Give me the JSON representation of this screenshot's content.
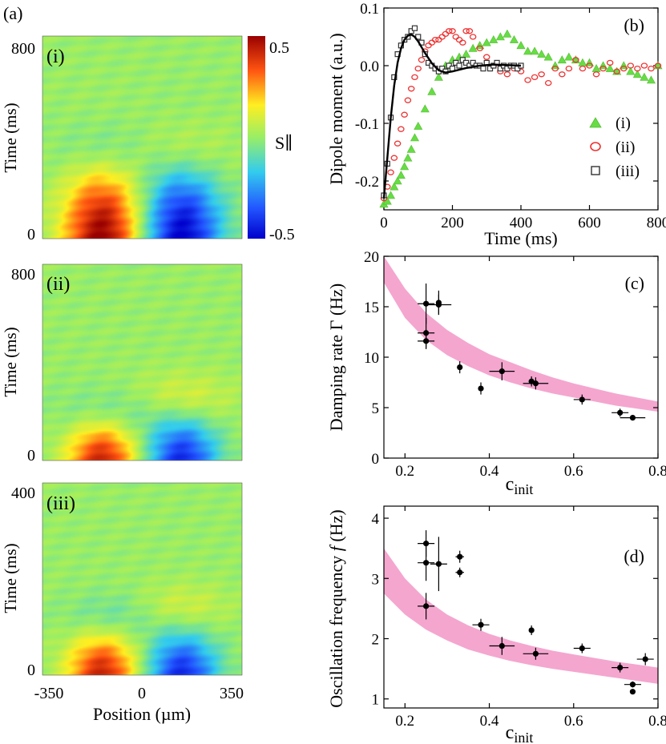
{
  "chart_data": [
    {
      "panel": "(a)",
      "type": "heatmap",
      "xlabel": "Position (µm)",
      "xticks": [
        "-350",
        "0",
        "350"
      ],
      "xlim": [
        -350,
        350
      ],
      "colorbar": {
        "label": "S∥",
        "max_label": "0.5",
        "min_label": "-0.5",
        "range": [
          -0.5,
          0.5
        ]
      },
      "subpanels": [
        {
          "label": "(i)",
          "ylabel": "Time (ms)",
          "ylim": [
            0,
            800
          ],
          "yticks": [
            "0",
            "800"
          ],
          "blobs": [
            {
              "x": -140,
              "t": 0,
              "amp": 0.5,
              "sx": 95,
              "st": 200
            },
            {
              "x": 140,
              "t": 0,
              "amp": -0.5,
              "sx": 95,
              "st": 200
            },
            {
              "x": -130,
              "t": 340,
              "amp": -0.12,
              "sx": 110,
              "st": 90
            },
            {
              "x": 140,
              "t": 340,
              "amp": 0.12,
              "sx": 110,
              "st": 90
            }
          ]
        },
        {
          "label": "(ii)",
          "ylabel": "Time (ms)",
          "ylim": [
            0,
            800
          ],
          "yticks": [
            "0",
            "800"
          ],
          "blobs": [
            {
              "x": -140,
              "t": 0,
              "amp": 0.42,
              "sx": 85,
              "st": 120
            },
            {
              "x": 140,
              "t": 0,
              "amp": -0.42,
              "sx": 85,
              "st": 120
            },
            {
              "x": -110,
              "t": 190,
              "amp": -0.12,
              "sx": 120,
              "st": 75
            },
            {
              "x": 140,
              "t": 250,
              "amp": 0.12,
              "sx": 120,
              "st": 75
            }
          ]
        },
        {
          "label": "(iii)",
          "ylabel": "Time (ms)",
          "ylim": [
            0,
            400
          ],
          "yticks": [
            "0",
            "400"
          ],
          "blobs": [
            {
              "x": -140,
              "t": 0,
              "amp": 0.42,
              "sx": 85,
              "st": 60
            },
            {
              "x": 140,
              "t": 0,
              "amp": -0.42,
              "sx": 85,
              "st": 60
            },
            {
              "x": -110,
              "t": 120,
              "amp": -0.1,
              "sx": 110,
              "st": 35
            },
            {
              "x": 140,
              "t": 140,
              "amp": 0.1,
              "sx": 110,
              "st": 35
            }
          ]
        }
      ]
    },
    {
      "panel": "(b)",
      "type": "scatter",
      "xlabel": "Time (ms)",
      "ylabel": "Dipole moment (a.u.)",
      "xlim": [
        0,
        800
      ],
      "ylim": [
        -0.25,
        0.1
      ],
      "xticks": [
        "0",
        "200",
        "400",
        "600",
        "800"
      ],
      "yticks": [
        "-0.2",
        "-0.1",
        "0.0",
        "0.1"
      ],
      "series": [
        {
          "name": "(i)",
          "marker": "triangle",
          "color": "#66dd44",
          "x": [
            0,
            10,
            20,
            30,
            40,
            50,
            60,
            70,
            80,
            90,
            100,
            120,
            140,
            160,
            180,
            200,
            220,
            240,
            260,
            280,
            300,
            320,
            340,
            360,
            380,
            400,
            420,
            440,
            460,
            480,
            500,
            520,
            540,
            560,
            580,
            600,
            620,
            640,
            660,
            680,
            700,
            720,
            740,
            760,
            780,
            800
          ],
          "y": [
            -0.24,
            -0.235,
            -0.225,
            -0.21,
            -0.2,
            -0.19,
            -0.175,
            -0.16,
            -0.145,
            -0.125,
            -0.105,
            -0.075,
            -0.045,
            -0.02,
            0.0,
            0.01,
            0.015,
            0.02,
            0.03,
            0.035,
            0.04,
            0.045,
            0.05,
            0.055,
            0.045,
            0.035,
            0.025,
            0.025,
            0.02,
            0.015,
            0.0,
            0.01,
            0.015,
            0.01,
            0.005,
            0.005,
            -0.005,
            0.0,
            -0.005,
            -0.01,
            0.0,
            -0.01,
            -0.015,
            -0.02,
            -0.025,
            0.0
          ]
        },
        {
          "name": "(ii)",
          "marker": "circle",
          "color": "#ee3333",
          "x": [
            0,
            10,
            20,
            30,
            40,
            50,
            60,
            70,
            80,
            90,
            100,
            110,
            120,
            130,
            140,
            150,
            160,
            170,
            180,
            190,
            200,
            210,
            220,
            230,
            240,
            250,
            260,
            280,
            300,
            320,
            340,
            360,
            380,
            400,
            420,
            440,
            460,
            480,
            500,
            520,
            540,
            560,
            580,
            600,
            620,
            640,
            660,
            680,
            700,
            720,
            740,
            760,
            780,
            800
          ],
          "y": [
            -0.23,
            -0.21,
            -0.185,
            -0.16,
            -0.135,
            -0.11,
            -0.085,
            -0.06,
            -0.04,
            -0.02,
            -0.005,
            0.01,
            0.025,
            0.035,
            0.04,
            0.045,
            0.045,
            0.05,
            0.055,
            0.06,
            0.06,
            0.05,
            0.045,
            0.04,
            0.06,
            0.06,
            0.05,
            0.03,
            0.015,
            0.0,
            -0.01,
            -0.015,
            -0.005,
            -0.01,
            -0.025,
            -0.02,
            -0.015,
            -0.03,
            -0.005,
            -0.015,
            -0.005,
            0.01,
            -0.005,
            0.0,
            -0.015,
            -0.005,
            0.005,
            -0.01,
            -0.005,
            0.0,
            -0.005,
            0.0,
            -0.005,
            0.0
          ]
        },
        {
          "name": "(iii)",
          "marker": "square",
          "color": "#333333",
          "x": [
            0,
            10,
            20,
            30,
            40,
            50,
            60,
            70,
            80,
            90,
            100,
            110,
            120,
            130,
            140,
            150,
            160,
            170,
            180,
            190,
            200,
            210,
            220,
            230,
            240,
            250,
            260,
            270,
            280,
            290,
            300,
            310,
            320,
            330,
            340,
            350,
            360,
            370,
            380,
            390,
            400
          ],
          "y": [
            -0.225,
            -0.17,
            -0.09,
            -0.02,
            0.02,
            0.035,
            0.045,
            0.05,
            0.06,
            0.065,
            0.05,
            0.04,
            0.02,
            0.005,
            0.0,
            -0.005,
            -0.01,
            -0.005,
            -0.01,
            0.0,
            -0.005,
            0.005,
            0.0,
            0.01,
            0.005,
            0.0,
            0.005,
            0.0,
            0.0,
            -0.005,
            0.005,
            -0.005,
            0.0,
            0.005,
            -0.005,
            0.0,
            -0.005,
            0.0,
            0.0,
            -0.005,
            0.0
          ]
        }
      ],
      "fit": {
        "series": "(iii)",
        "x": [
          0,
          10,
          20,
          30,
          40,
          50,
          60,
          70,
          80,
          90,
          100,
          120,
          140,
          160,
          180,
          200,
          240,
          280,
          320,
          360,
          400
        ],
        "y": [
          -0.23,
          -0.16,
          -0.09,
          -0.035,
          0.005,
          0.03,
          0.045,
          0.052,
          0.054,
          0.05,
          0.042,
          0.022,
          0.004,
          -0.008,
          -0.012,
          -0.01,
          -0.004,
          0.0,
          0.002,
          0.001,
          0.0
        ]
      },
      "legend": {
        "position": "right",
        "entries": [
          "(i)",
          "(ii)",
          "(iii)"
        ]
      }
    },
    {
      "panel": "(c)",
      "type": "scatter",
      "xlabel": "c",
      "xlabel_sub": "init",
      "ylabel": "Damping rate Γ (Hz)",
      "xlim": [
        0.15,
        0.8
      ],
      "ylim": [
        0,
        20
      ],
      "xticks": [
        "0.2",
        "0.4",
        "0.6",
        "0.8"
      ],
      "yticks": [
        "0",
        "5",
        "10",
        "15",
        "20"
      ],
      "band": {
        "color": "#f4a6cf",
        "x": [
          0.15,
          0.2,
          0.25,
          0.3,
          0.35,
          0.4,
          0.45,
          0.5,
          0.55,
          0.6,
          0.65,
          0.7,
          0.75,
          0.8
        ],
        "lower": [
          17.4,
          13.9,
          11.7,
          10.2,
          9.1,
          8.2,
          7.5,
          6.9,
          6.4,
          6.0,
          5.6,
          5.2,
          4.9,
          4.6
        ],
        "upper": [
          20.0,
          16.8,
          14.4,
          12.7,
          11.4,
          10.3,
          9.5,
          8.7,
          8.0,
          7.4,
          6.9,
          6.4,
          6.0,
          5.6
        ]
      },
      "points": [
        {
          "x": 0.25,
          "y": 15.3,
          "xerr": 0.02,
          "yerr": 2.0
        },
        {
          "x": 0.25,
          "y": 12.4,
          "xerr": 0.02,
          "yerr": 1.5
        },
        {
          "x": 0.25,
          "y": 11.6,
          "xerr": 0.02,
          "yerr": 0.8
        },
        {
          "x": 0.28,
          "y": 15.2,
          "xerr": 0.03,
          "yerr": 1.0
        },
        {
          "x": 0.28,
          "y": 15.4,
          "xerr": 0.0,
          "yerr": 1.2
        },
        {
          "x": 0.33,
          "y": 9.0,
          "xerr": 0.0,
          "yerr": 0.6
        },
        {
          "x": 0.38,
          "y": 6.9,
          "xerr": 0.0,
          "yerr": 0.6
        },
        {
          "x": 0.43,
          "y": 8.6,
          "xerr": 0.03,
          "yerr": 0.9
        },
        {
          "x": 0.5,
          "y": 7.6,
          "xerr": 0.0,
          "yerr": 0.5
        },
        {
          "x": 0.51,
          "y": 7.4,
          "xerr": 0.03,
          "yerr": 0.6
        },
        {
          "x": 0.62,
          "y": 5.8,
          "xerr": 0.02,
          "yerr": 0.5
        },
        {
          "x": 0.71,
          "y": 4.5,
          "xerr": 0.02,
          "yerr": 0.4
        },
        {
          "x": 0.74,
          "y": 4.0,
          "xerr": 0.03,
          "yerr": 0.0
        }
      ]
    },
    {
      "panel": "(d)",
      "type": "scatter",
      "xlabel": "c",
      "xlabel_sub": "init",
      "ylabel": "Oscillation frequency ",
      "ylabel_symbol": "f",
      "ylabel_unit": " (Hz)",
      "xlim": [
        0.15,
        0.8
      ],
      "ylim": [
        0.85,
        4.2
      ],
      "xticks": [
        "0.2",
        "0.4",
        "0.6",
        "0.8"
      ],
      "yticks": [
        "1",
        "2",
        "3",
        "4"
      ],
      "band": {
        "color": "#f4a6cf",
        "x": [
          0.15,
          0.2,
          0.25,
          0.3,
          0.35,
          0.4,
          0.45,
          0.5,
          0.55,
          0.6,
          0.65,
          0.7,
          0.75,
          0.8
        ],
        "lower": [
          2.75,
          2.4,
          2.15,
          1.97,
          1.82,
          1.72,
          1.63,
          1.56,
          1.5,
          1.45,
          1.4,
          1.35,
          1.3,
          1.25
        ],
        "upper": [
          3.5,
          3.0,
          2.65,
          2.4,
          2.22,
          2.08,
          1.97,
          1.88,
          1.8,
          1.74,
          1.68,
          1.62,
          1.57,
          1.52
        ]
      },
      "points": [
        {
          "x": 0.25,
          "y": 3.58,
          "xerr": 0.02,
          "yerr": 0.22
        },
        {
          "x": 0.25,
          "y": 3.26,
          "xerr": 0.02,
          "yerr": 0.3
        },
        {
          "x": 0.28,
          "y": 3.24,
          "xerr": 0.02,
          "yerr": 0.45
        },
        {
          "x": 0.33,
          "y": 3.36,
          "xerr": 0.01,
          "yerr": 0.1
        },
        {
          "x": 0.33,
          "y": 3.1,
          "xerr": 0.01,
          "yerr": 0.08
        },
        {
          "x": 0.25,
          "y": 2.54,
          "xerr": 0.02,
          "yerr": 0.22
        },
        {
          "x": 0.38,
          "y": 2.23,
          "xerr": 0.02,
          "yerr": 0.1
        },
        {
          "x": 0.43,
          "y": 1.88,
          "xerr": 0.03,
          "yerr": 0.15
        },
        {
          "x": 0.5,
          "y": 2.14,
          "xerr": 0.0,
          "yerr": 0.08
        },
        {
          "x": 0.51,
          "y": 1.75,
          "xerr": 0.03,
          "yerr": 0.1
        },
        {
          "x": 0.62,
          "y": 1.84,
          "xerr": 0.02,
          "yerr": 0.08
        },
        {
          "x": 0.71,
          "y": 1.52,
          "xerr": 0.02,
          "yerr": 0.08
        },
        {
          "x": 0.74,
          "y": 1.24,
          "xerr": 0.02,
          "yerr": 0.05
        },
        {
          "x": 0.74,
          "y": 1.12,
          "xerr": 0.0,
          "yerr": 0.0
        },
        {
          "x": 0.77,
          "y": 1.66,
          "xerr": 0.02,
          "yerr": 0.1
        }
      ]
    }
  ]
}
